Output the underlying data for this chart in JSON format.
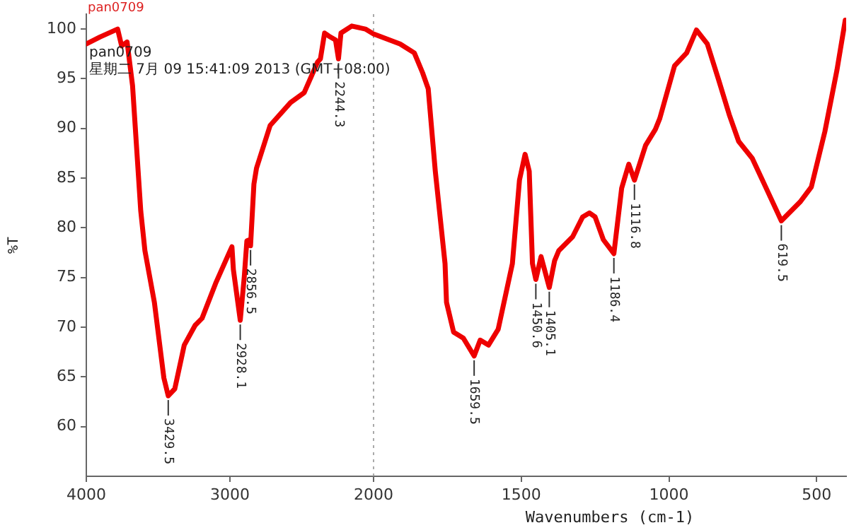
{
  "chart_data": [
    {
      "type": "line",
      "title": "pan0709",
      "ylabel": "%T",
      "x": [
        4000,
        3905,
        3782,
        3754,
        3716,
        3678,
        3621,
        3592,
        3526,
        3460,
        3429.5,
        3384,
        3318,
        3242,
        3194,
        3100,
        3005,
        2986,
        2976,
        2928.1,
        2900,
        2882,
        2863,
        2856.5,
        2833,
        2815,
        2720,
        2578,
        2483,
        2389,
        2370,
        2341,
        2312,
        2265,
        2244.3,
        2227,
        2152,
        2057,
        2000
      ],
      "series": [
        {
          "color": "#ee0000",
          "values": [
            98.5,
            99.2,
            100,
            98.3,
            98.7,
            94.3,
            81.7,
            77.7,
            72.5,
            64.9,
            63.1,
            63.8,
            68.2,
            70.2,
            70.9,
            74.4,
            77.5,
            78.1,
            75.8,
            70.7,
            75.1,
            78.7,
            78.8,
            78.2,
            84.4,
            86,
            90.3,
            92.6,
            93.6,
            96.7,
            97,
            99.6,
            99.3,
            98.9,
            97,
            99.6,
            100.3,
            100,
            99.5
          ]
        }
      ],
      "xlim": [
        4000,
        2000
      ],
      "xticks": [
        4000,
        3000,
        2000
      ],
      "ylim": [
        55,
        101.5
      ],
      "yticks": [
        60,
        65,
        70,
        75,
        80,
        85,
        90,
        95,
        100
      ],
      "ref_lines": [
        {
          "axis": "x",
          "value": 2000,
          "color": "#aaaaaa",
          "line_style": "dotted"
        }
      ],
      "annotations": [
        "pan0709",
        "星期二 7月 09 15:41:09 2013 (GMT+08:00)",
        {
          "text": "3429.5",
          "x": 3429.5,
          "y": 63.1
        },
        {
          "text": "2928.1",
          "x": 2928.1,
          "y": 70.7
        },
        {
          "text": "2856.5",
          "x": 2856.5,
          "y": 78.2
        },
        {
          "text": "2244.3",
          "x": 2244.3,
          "y": 97
        }
      ],
      "grid": false,
      "legend": false,
      "line_style": "solid",
      "marker": "none"
    },
    {
      "type": "line",
      "xlabel": "Wavenumbers (cm-1)",
      "x": [
        2000,
        1910,
        1862,
        1834,
        1815,
        1791,
        1758,
        1753,
        1729,
        1696,
        1659.5,
        1639,
        1611,
        1578,
        1530,
        1506,
        1487,
        1473,
        1462,
        1450.6,
        1433,
        1405.1,
        1387,
        1373,
        1326,
        1292,
        1269,
        1250,
        1222,
        1186.4,
        1160,
        1136,
        1116.8,
        1079,
        1046,
        1031,
        981,
        940,
        907,
        870,
        833,
        796,
        764,
        718,
        671,
        619.5,
        556,
        518,
        472,
        431,
        403
      ],
      "series": [
        {
          "color": "#ee0000",
          "values": [
            99.5,
            98.5,
            97.6,
            95.6,
            94,
            85.7,
            76.4,
            72.5,
            69.5,
            68.9,
            67.1,
            68.7,
            68.2,
            69.8,
            76.4,
            84.8,
            87.4,
            85.7,
            76.4,
            74.8,
            77.1,
            74,
            76.7,
            77.7,
            79.1,
            81.1,
            81.5,
            81.1,
            78.8,
            77.4,
            84,
            86.4,
            84.8,
            88.3,
            89.9,
            91,
            96.3,
            97.6,
            99.9,
            98.5,
            95,
            91.4,
            88.7,
            87,
            84,
            80.7,
            82.6,
            84.1,
            89.7,
            95.9,
            100.9
          ]
        }
      ],
      "xlim": [
        2000,
        400
      ],
      "xticks": [
        1500,
        1000,
        500
      ],
      "ylim": [
        55,
        101.5
      ],
      "tick_labels": "x",
      "annotations": [
        {
          "text": "1659.5",
          "x": 1659.5,
          "y": 67.1
        },
        {
          "text": "1450.6",
          "x": 1450.6,
          "y": 74.8
        },
        {
          "text": "1405.1",
          "x": 1405.1,
          "y": 74
        },
        {
          "text": "1186.4",
          "x": 1186.4,
          "y": 77.4
        },
        {
          "text": "1116.8",
          "x": 1116.8,
          "y": 84.8
        },
        {
          "text": "619.5",
          "x": 619.5,
          "y": 80.7
        }
      ],
      "grid": false,
      "legend": false,
      "line_style": "solid",
      "marker": "none"
    }
  ]
}
